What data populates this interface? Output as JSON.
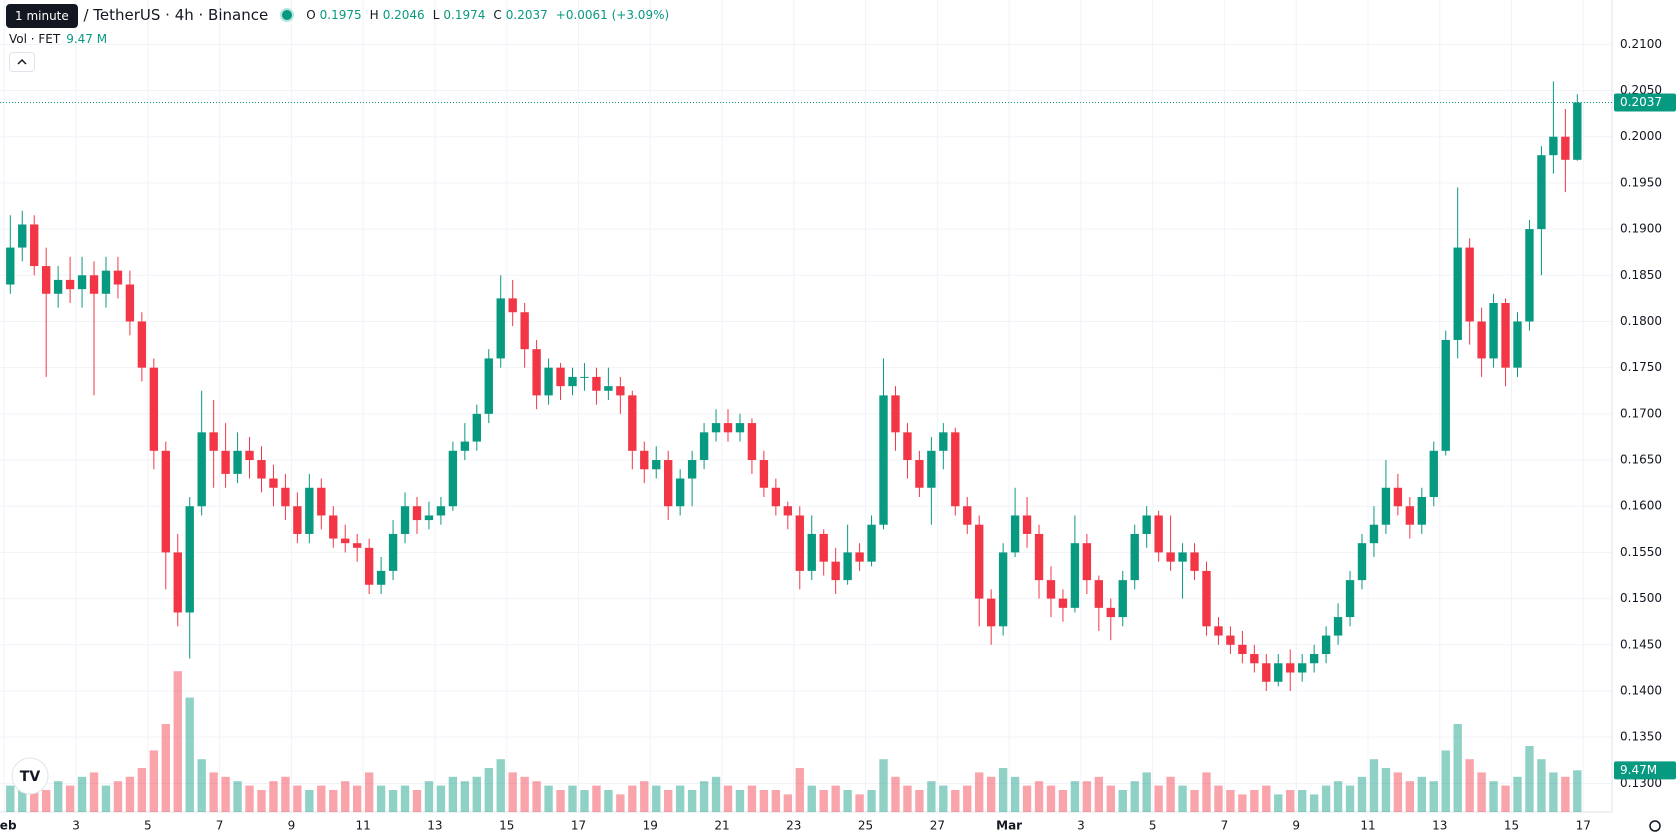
{
  "header": {
    "tooltip": "1 minute",
    "symbol": "AI / TetherUS · 4h · Binance",
    "ohlc": [
      {
        "label": "O",
        "value": "0.1975"
      },
      {
        "label": "H",
        "value": "0.2046"
      },
      {
        "label": "L",
        "value": "0.1974"
      },
      {
        "label": "C",
        "value": "0.2037"
      }
    ],
    "change": "+0.0061 (+3.09%)",
    "volume_title": "Vol · FET",
    "volume_value": "9.47 M"
  },
  "chart_data": {
    "type": "candlestick",
    "up_color": "#089981",
    "down_color": "#f23645",
    "grid": true,
    "open": [
      0.184,
      0.188,
      0.1905,
      0.186,
      0.183,
      0.1845,
      0.1835,
      0.185,
      0.183,
      0.1855,
      0.184,
      0.18,
      0.175,
      0.166,
      0.155,
      0.1485,
      0.16,
      0.168,
      0.166,
      0.1635,
      0.166,
      0.165,
      0.163,
      0.162,
      0.16,
      0.157,
      0.162,
      0.159,
      0.1565,
      0.156,
      0.1555,
      0.1515,
      0.153,
      0.157,
      0.16,
      0.1585,
      0.159,
      0.16,
      0.166,
      0.167,
      0.17,
      0.176,
      0.1825,
      0.181,
      0.177,
      0.172,
      0.175,
      0.173,
      0.174,
      0.174,
      0.1725,
      0.173,
      0.172,
      0.166,
      0.164,
      0.165,
      0.16,
      0.163,
      0.165,
      0.168,
      0.169,
      0.168,
      0.169,
      0.165,
      0.162,
      0.16,
      0.159,
      0.153,
      0.157,
      0.154,
      0.152,
      0.155,
      0.154,
      0.158,
      0.172,
      0.168,
      0.165,
      0.162,
      0.166,
      0.168,
      0.16,
      0.158,
      0.15,
      0.147,
      0.155,
      0.159,
      0.157,
      0.152,
      0.15,
      0.149,
      0.156,
      0.152,
      0.149,
      0.148,
      0.152,
      0.157,
      0.159,
      0.155,
      0.154,
      0.155,
      0.153,
      0.147,
      0.146,
      0.145,
      0.144,
      0.143,
      0.141,
      0.143,
      0.142,
      0.143,
      0.144,
      0.146,
      0.148,
      0.152,
      0.156,
      0.158,
      0.162,
      0.16,
      0.158,
      0.161,
      0.166,
      0.178,
      0.188,
      0.18,
      0.176,
      0.182,
      0.175,
      0.18,
      0.19,
      0.198,
      0.2,
      0.1975
    ],
    "high": [
      0.1915,
      0.192,
      0.1915,
      0.188,
      0.186,
      0.187,
      0.187,
      0.1865,
      0.187,
      0.187,
      0.1855,
      0.181,
      0.176,
      0.167,
      0.157,
      0.161,
      0.1725,
      0.1715,
      0.169,
      0.168,
      0.1675,
      0.1665,
      0.1645,
      0.1635,
      0.1615,
      0.1635,
      0.163,
      0.16,
      0.158,
      0.157,
      0.1565,
      0.1545,
      0.1585,
      0.1615,
      0.161,
      0.1605,
      0.161,
      0.167,
      0.169,
      0.171,
      0.177,
      0.185,
      0.1845,
      0.182,
      0.178,
      0.176,
      0.1755,
      0.175,
      0.1755,
      0.175,
      0.175,
      0.174,
      0.1725,
      0.167,
      0.1665,
      0.166,
      0.164,
      0.166,
      0.169,
      0.1705,
      0.1705,
      0.17,
      0.1695,
      0.166,
      0.163,
      0.1605,
      0.16,
      0.159,
      0.1575,
      0.1555,
      0.158,
      0.156,
      0.159,
      0.176,
      0.173,
      0.169,
      0.166,
      0.1675,
      0.169,
      0.1685,
      0.161,
      0.159,
      0.151,
      0.156,
      0.162,
      0.161,
      0.158,
      0.1535,
      0.151,
      0.159,
      0.157,
      0.1525,
      0.15,
      0.153,
      0.158,
      0.16,
      0.1595,
      0.159,
      0.156,
      0.156,
      0.154,
      0.148,
      0.147,
      0.1465,
      0.145,
      0.144,
      0.144,
      0.1445,
      0.144,
      0.145,
      0.147,
      0.1495,
      0.153,
      0.157,
      0.16,
      0.165,
      0.1635,
      0.161,
      0.162,
      0.167,
      0.179,
      0.1945,
      0.189,
      0.1815,
      0.183,
      0.1825,
      0.181,
      0.191,
      0.199,
      0.206,
      0.203,
      0.2046
    ],
    "low": [
      0.183,
      0.1865,
      0.185,
      0.174,
      0.1815,
      0.182,
      0.1815,
      0.172,
      0.1815,
      0.1825,
      0.1785,
      0.1735,
      0.164,
      0.151,
      0.147,
      0.1435,
      0.159,
      0.162,
      0.162,
      0.1625,
      0.163,
      0.1615,
      0.16,
      0.1585,
      0.156,
      0.156,
      0.1575,
      0.1555,
      0.155,
      0.154,
      0.1505,
      0.1505,
      0.152,
      0.156,
      0.157,
      0.1575,
      0.158,
      0.1595,
      0.165,
      0.166,
      0.169,
      0.175,
      0.1795,
      0.175,
      0.1705,
      0.171,
      0.1715,
      0.172,
      0.1725,
      0.171,
      0.1715,
      0.17,
      0.164,
      0.1625,
      0.163,
      0.1585,
      0.159,
      0.16,
      0.164,
      0.167,
      0.167,
      0.167,
      0.1635,
      0.161,
      0.159,
      0.1575,
      0.151,
      0.152,
      0.1525,
      0.1505,
      0.1515,
      0.153,
      0.1535,
      0.1575,
      0.166,
      0.163,
      0.161,
      0.158,
      0.164,
      0.159,
      0.157,
      0.147,
      0.145,
      0.146,
      0.1545,
      0.1555,
      0.15,
      0.148,
      0.1475,
      0.1485,
      0.1505,
      0.1465,
      0.1455,
      0.147,
      0.151,
      0.1555,
      0.154,
      0.153,
      0.15,
      0.152,
      0.146,
      0.145,
      0.144,
      0.143,
      0.142,
      0.14,
      0.1405,
      0.14,
      0.141,
      0.142,
      0.143,
      0.145,
      0.147,
      0.151,
      0.1545,
      0.157,
      0.159,
      0.1565,
      0.157,
      0.16,
      0.1655,
      0.176,
      0.1775,
      0.174,
      0.175,
      0.173,
      0.174,
      0.179,
      0.185,
      0.196,
      0.194,
      0.1974
    ],
    "close": [
      0.188,
      0.1905,
      0.186,
      0.183,
      0.1845,
      0.1835,
      0.185,
      0.183,
      0.1855,
      0.184,
      0.18,
      0.175,
      0.166,
      0.155,
      0.1485,
      0.16,
      0.168,
      0.166,
      0.1635,
      0.166,
      0.165,
      0.163,
      0.162,
      0.16,
      0.157,
      0.162,
      0.159,
      0.1565,
      0.156,
      0.1555,
      0.1515,
      0.153,
      0.157,
      0.16,
      0.1585,
      0.159,
      0.16,
      0.166,
      0.167,
      0.17,
      0.176,
      0.1825,
      0.181,
      0.177,
      0.172,
      0.175,
      0.173,
      0.174,
      0.174,
      0.1725,
      0.173,
      0.172,
      0.166,
      0.164,
      0.165,
      0.16,
      0.163,
      0.165,
      0.168,
      0.169,
      0.168,
      0.169,
      0.165,
      0.162,
      0.16,
      0.159,
      0.153,
      0.157,
      0.154,
      0.152,
      0.155,
      0.154,
      0.158,
      0.172,
      0.168,
      0.165,
      0.162,
      0.166,
      0.168,
      0.16,
      0.158,
      0.15,
      0.147,
      0.155,
      0.159,
      0.157,
      0.152,
      0.15,
      0.149,
      0.156,
      0.152,
      0.149,
      0.148,
      0.152,
      0.157,
      0.159,
      0.155,
      0.154,
      0.155,
      0.153,
      0.147,
      0.146,
      0.145,
      0.144,
      0.143,
      0.141,
      0.143,
      0.142,
      0.143,
      0.144,
      0.146,
      0.148,
      0.152,
      0.156,
      0.158,
      0.162,
      0.16,
      0.158,
      0.161,
      0.166,
      0.178,
      0.188,
      0.18,
      0.176,
      0.182,
      0.175,
      0.18,
      0.19,
      0.198,
      0.2,
      0.1975,
      0.2037
    ],
    "volume": [
      6,
      8,
      7,
      5,
      7,
      6,
      8,
      9,
      6,
      7,
      8,
      10,
      14,
      20,
      32,
      26,
      12,
      9,
      8,
      7,
      6,
      5,
      7,
      8,
      6,
      5,
      6,
      5,
      7,
      6,
      9,
      6,
      5,
      6,
      5,
      7,
      6,
      8,
      7,
      8,
      10,
      12,
      9,
      8,
      7,
      6,
      5,
      6,
      5,
      6,
      5,
      4,
      6,
      7,
      6,
      5,
      6,
      5,
      7,
      8,
      6,
      5,
      6,
      5,
      5,
      4,
      10,
      6,
      5,
      6,
      5,
      4,
      5,
      12,
      8,
      6,
      5,
      7,
      6,
      5,
      6,
      9,
      8,
      10,
      8,
      6,
      7,
      6,
      5,
      7,
      7,
      8,
      6,
      5,
      7,
      9,
      6,
      8,
      6,
      5,
      9,
      6,
      5,
      4,
      5,
      6,
      4,
      5,
      5,
      4,
      6,
      7,
      6,
      8,
      12,
      10,
      9,
      7,
      8,
      7,
      14,
      20,
      12,
      9,
      7,
      6,
      8,
      15,
      12,
      9,
      8,
      9.47
    ],
    "last_price_label": "0.2037",
    "last_volume_label": "9.47M",
    "xlim": [
      -0.36,
      134.4
    ],
    "xticks": [
      {
        "value": 0,
        "label": "Feb"
      },
      {
        "value": 6,
        "label": "3"
      },
      {
        "value": 12,
        "label": "5"
      },
      {
        "value": 18,
        "label": "7"
      },
      {
        "value": 24,
        "label": "9"
      },
      {
        "value": 30,
        "label": "11"
      },
      {
        "value": 36,
        "label": "13"
      },
      {
        "value": 42,
        "label": "15"
      },
      {
        "value": 48,
        "label": "17"
      },
      {
        "value": 54,
        "label": "19"
      },
      {
        "value": 60,
        "label": "21"
      },
      {
        "value": 66,
        "label": "23"
      },
      {
        "value": 72,
        "label": "25"
      },
      {
        "value": 78,
        "label": "27"
      },
      {
        "value": 84,
        "label": "Mar"
      },
      {
        "value": 90,
        "label": "3"
      },
      {
        "value": 96,
        "label": "5"
      },
      {
        "value": 102,
        "label": "7"
      },
      {
        "value": 108,
        "label": "9"
      },
      {
        "value": 114,
        "label": "11"
      },
      {
        "value": 120,
        "label": "13"
      },
      {
        "value": 126,
        "label": "15"
      },
      {
        "value": 132,
        "label": "17"
      }
    ],
    "ylim": [
      0.1269,
      0.2148
    ],
    "yticks": [
      {
        "value": 0.13,
        "label": "0.1300"
      },
      {
        "value": 0.135,
        "label": "0.1350"
      },
      {
        "value": 0.14,
        "label": "0.1400"
      },
      {
        "value": 0.145,
        "label": "0.1450"
      },
      {
        "value": 0.15,
        "label": "0.1500"
      },
      {
        "value": 0.155,
        "label": "0.1550"
      },
      {
        "value": 0.16,
        "label": "0.1600"
      },
      {
        "value": 0.165,
        "label": "0.1650"
      },
      {
        "value": 0.17,
        "label": "0.1700"
      },
      {
        "value": 0.175,
        "label": "0.1750"
      },
      {
        "value": 0.18,
        "label": "0.1800"
      },
      {
        "value": 0.185,
        "label": "0.1850"
      },
      {
        "value": 0.19,
        "label": "0.1900"
      },
      {
        "value": 0.195,
        "label": "0.1950"
      },
      {
        "value": 0.2,
        "label": "0.2000"
      },
      {
        "value": 0.205,
        "label": "0.2050"
      },
      {
        "value": 0.21,
        "label": "0.2100"
      }
    ]
  }
}
